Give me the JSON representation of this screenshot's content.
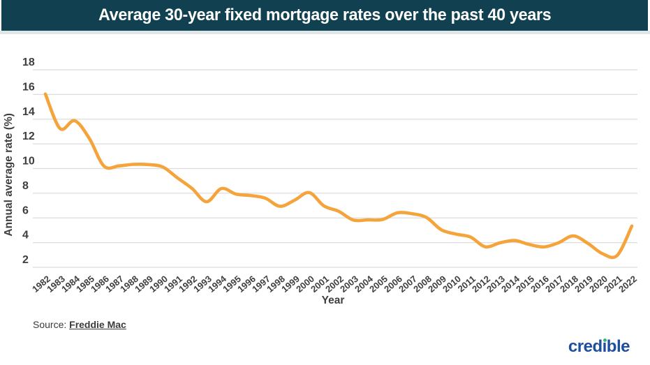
{
  "header": {
    "title": "Average 30-year fixed mortgage rates over the past 40 years"
  },
  "chart_data": {
    "type": "line",
    "title": "Average 30-year fixed mortgage rates over the past 40 years",
    "xlabel": "Year",
    "ylabel": "Annual average rate (%)",
    "ylim": [
      2,
      18
    ],
    "yticks": [
      2,
      4,
      6,
      8,
      10,
      12,
      14,
      16,
      18
    ],
    "grid": true,
    "legend": "none",
    "smooth": true,
    "categories": [
      "1982",
      "1983",
      "1984",
      "1985",
      "1986",
      "1987",
      "1988",
      "1989",
      "1990",
      "1991",
      "1992",
      "1993",
      "1994",
      "1995",
      "1996",
      "1997",
      "1998",
      "1999",
      "2000",
      "2001",
      "2002",
      "2003",
      "2004",
      "2005",
      "2006",
      "2007",
      "2008",
      "2009",
      "2010",
      "2011",
      "2012",
      "2013",
      "2014",
      "2015",
      "2016",
      "2017",
      "2018",
      "2019",
      "2020",
      "2021",
      "2022"
    ],
    "values": [
      16.04,
      13.24,
      13.88,
      12.43,
      10.19,
      10.21,
      10.34,
      10.32,
      10.13,
      9.25,
      8.39,
      7.31,
      8.38,
      7.93,
      7.81,
      7.6,
      6.94,
      7.44,
      8.05,
      6.97,
      6.54,
      5.83,
      5.84,
      5.87,
      6.41,
      6.34,
      6.03,
      5.04,
      4.69,
      4.45,
      3.66,
      3.98,
      4.17,
      3.85,
      3.65,
      3.99,
      4.54,
      3.94,
      3.1,
      2.96,
      5.34
    ]
  },
  "source": {
    "prefix": "Source: ",
    "link_text": "Freddie Mac"
  },
  "logo": {
    "text": "credible"
  },
  "colors": {
    "banner_bg": "#114150",
    "banner_text": "#ffffff",
    "line": "#f5a43c",
    "gridline": "#dcdcdc",
    "axis_text": "#3e3e3e",
    "logo_blue": "#1d4f9e",
    "logo_dot_green": "#34b67a"
  }
}
